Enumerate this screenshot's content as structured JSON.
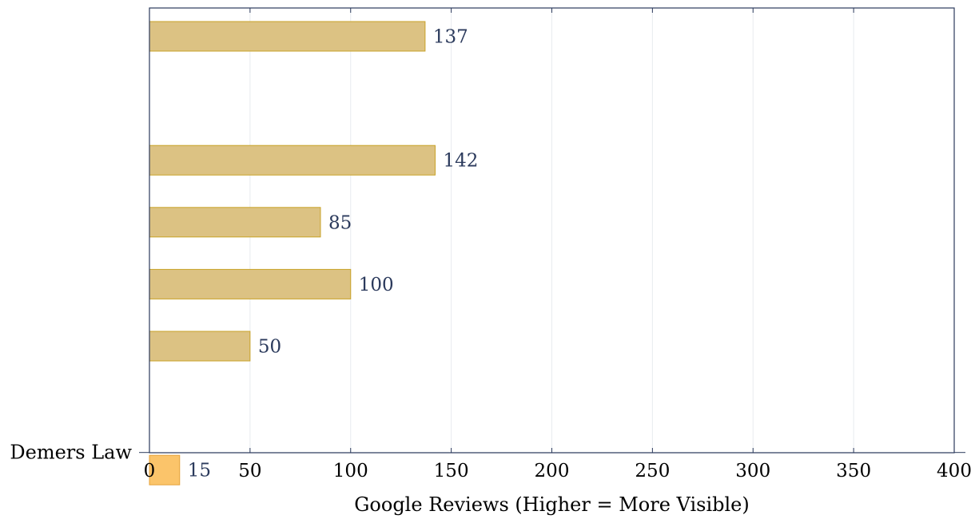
{
  "chart_data": {
    "type": "bar",
    "orientation": "horizontal",
    "title": "",
    "xlabel": "Google Reviews (Higher = More Visible)",
    "ylabel": "",
    "xlim": [
      0,
      400
    ],
    "xticks": [
      0,
      50,
      100,
      150,
      200,
      250,
      300,
      350,
      400
    ],
    "grid": "vertical",
    "category_slots": 8,
    "bars": [
      {
        "slot": 0,
        "category": "",
        "value": 137,
        "label": "137",
        "color": "#dcc283"
      },
      {
        "slot": 2,
        "category": "",
        "value": 142,
        "label": "142",
        "color": "#dcc283"
      },
      {
        "slot": 3,
        "category": "",
        "value": 85,
        "label": "85",
        "color": "#dcc283"
      },
      {
        "slot": 4,
        "category": "",
        "value": 100,
        "label": "100",
        "color": "#dcc283"
      },
      {
        "slot": 5,
        "category": "",
        "value": 50,
        "label": "50",
        "color": "#dcc283"
      },
      {
        "slot": 7,
        "category": "Demers Law",
        "value": 15,
        "label": "15",
        "color": "#fbc46a",
        "highlight": true
      }
    ],
    "colors": {
      "bar": "#dcc283",
      "bar_edge": "#c9a227",
      "highlight": "#fbc46a",
      "highlight_edge": "#e5a23a",
      "axis": "#2b3a5c",
      "grid": "#e8ebef",
      "label": "#2b3a5c"
    }
  }
}
